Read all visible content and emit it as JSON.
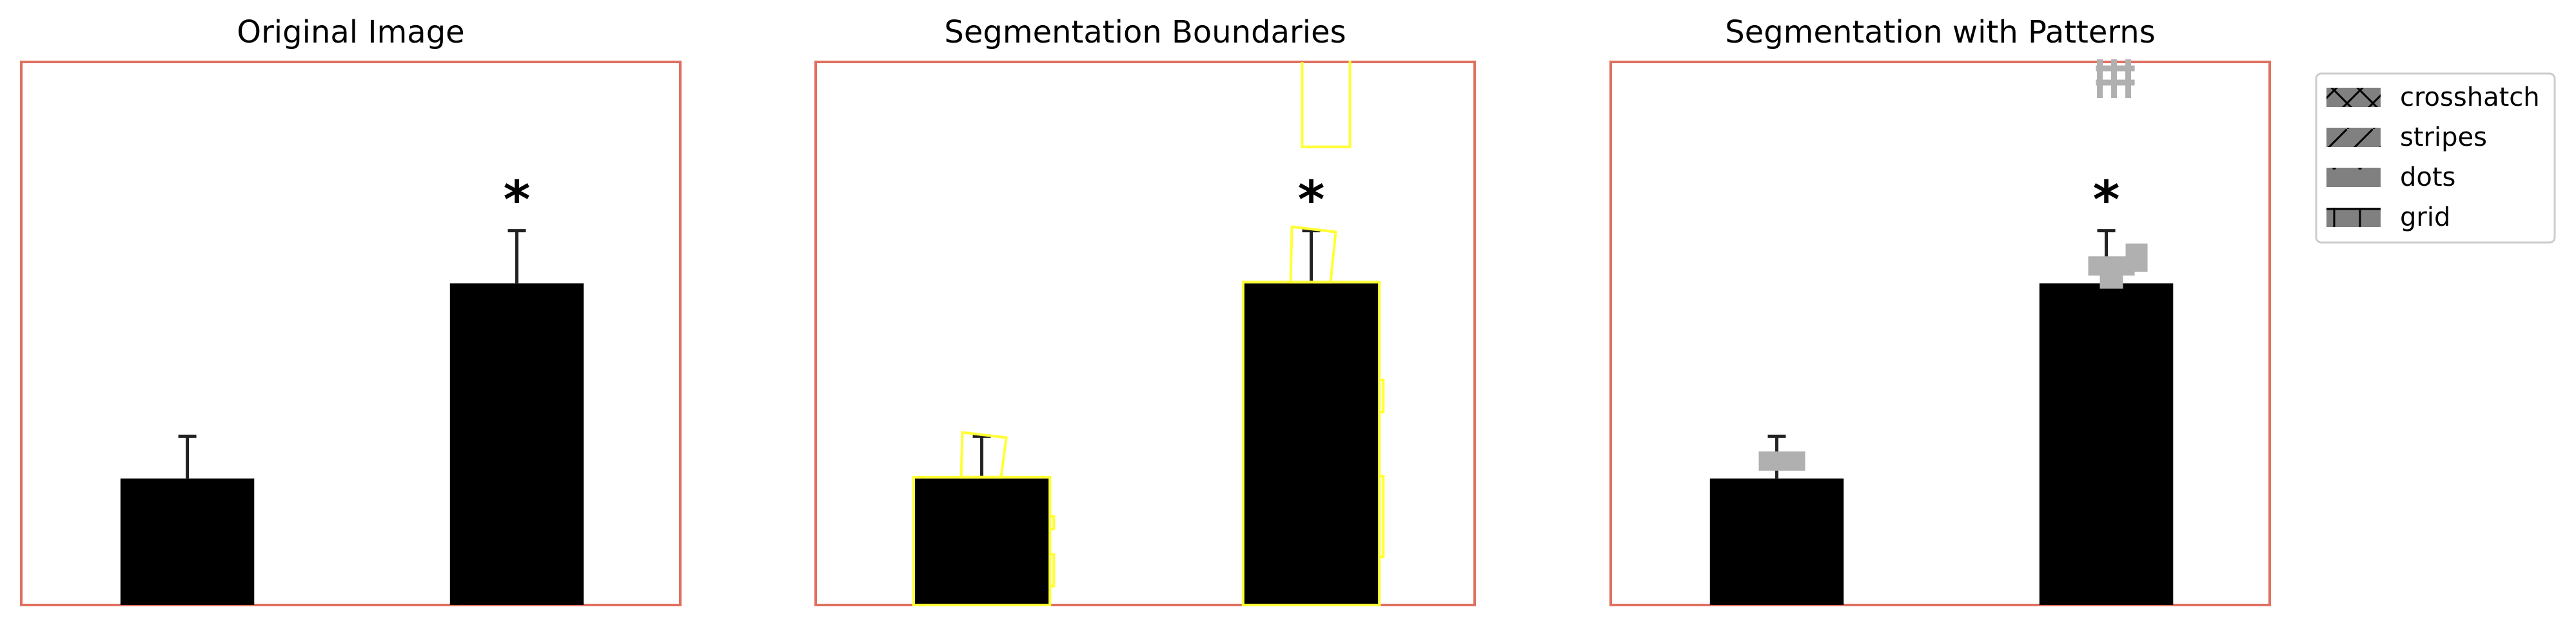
{
  "chart_data": [
    {
      "type": "bar",
      "title": "Original Image",
      "categories": [
        "",
        ""
      ],
      "values": [
        24,
        61
      ],
      "errors": [
        8,
        10
      ],
      "annotations": [
        "",
        "*"
      ],
      "ylim": [
        0,
        103
      ],
      "axes_visible": false,
      "overlay": "none"
    },
    {
      "type": "bar",
      "title": "Segmentation Boundaries",
      "categories": [
        "",
        ""
      ],
      "values": [
        24,
        61
      ],
      "errors": [
        8,
        10
      ],
      "annotations": [
        "",
        "*"
      ],
      "ylim": [
        0,
        103
      ],
      "axes_visible": false,
      "overlay": "boundaries"
    },
    {
      "type": "bar",
      "title": "Segmentation with Patterns",
      "categories": [
        "",
        ""
      ],
      "values": [
        24,
        61
      ],
      "errors": [
        8,
        10
      ],
      "annotations": [
        "",
        "*"
      ],
      "ylim": [
        0,
        103
      ],
      "axes_visible": false,
      "overlay": "patterns"
    }
  ],
  "legend": {
    "placement": "outside-right",
    "items": [
      {
        "label": "crosshatch",
        "pattern": "crosshatch"
      },
      {
        "label": "stripes",
        "pattern": "stripes"
      },
      {
        "label": "dots",
        "pattern": "dots"
      },
      {
        "label": "grid",
        "pattern": "grid"
      }
    ]
  },
  "colors": {
    "bar": "#000000",
    "frame": "#e07060",
    "boundary": "#ffff33",
    "pattern": "#b0b0b0",
    "legend_swatch": "#808080",
    "error_bar": "#222222"
  }
}
